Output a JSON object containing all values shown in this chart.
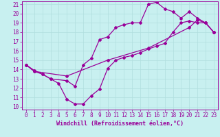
{
  "xlabel": "Windchill (Refroidissement éolien,°C)",
  "bg_color": "#c8f0f0",
  "line_color": "#990099",
  "xlim": [
    -0.5,
    23.5
  ],
  "ylim": [
    9.7,
    21.3
  ],
  "xticks": [
    0,
    1,
    2,
    3,
    4,
    5,
    6,
    7,
    8,
    9,
    10,
    11,
    12,
    13,
    14,
    15,
    16,
    17,
    18,
    19,
    20,
    21,
    22,
    23
  ],
  "yticks": [
    10,
    11,
    12,
    13,
    14,
    15,
    16,
    17,
    18,
    19,
    20,
    21
  ],
  "line1_x": [
    0,
    1,
    2,
    3,
    4,
    5,
    6,
    7,
    8,
    9,
    10,
    11,
    12,
    13,
    14,
    15,
    16,
    17,
    18,
    19,
    20,
    21,
    22,
    23
  ],
  "line1_y": [
    14.5,
    13.9,
    13.5,
    13.0,
    12.5,
    10.8,
    10.3,
    10.3,
    11.2,
    11.9,
    14.1,
    15.0,
    15.3,
    15.5,
    15.8,
    16.2,
    16.5,
    16.8,
    18.0,
    19.0,
    19.2,
    19.0,
    19.0,
    18.0
  ],
  "line2_x": [
    0,
    1,
    2,
    3,
    5,
    6,
    7,
    8,
    9,
    10,
    11,
    12,
    13,
    14,
    15,
    16,
    17,
    18,
    19,
    20,
    21,
    22,
    23
  ],
  "line2_y": [
    14.5,
    13.8,
    13.5,
    13.0,
    12.8,
    12.2,
    14.5,
    15.2,
    17.2,
    17.5,
    18.5,
    18.8,
    19.0,
    19.0,
    21.0,
    21.2,
    20.5,
    20.2,
    19.5,
    20.2,
    19.5,
    19.0,
    18.0
  ],
  "line3_x": [
    0,
    1,
    5,
    10,
    15,
    20,
    21,
    22,
    23
  ],
  "line3_y": [
    14.5,
    13.8,
    13.3,
    15.0,
    16.3,
    18.5,
    19.3,
    19.0,
    18.0
  ],
  "grid_color": "#b0dede",
  "marker": "D",
  "marker_size": 2,
  "line_width": 0.9,
  "xlabel_fontsize": 6,
  "tick_fontsize": 5.5
}
